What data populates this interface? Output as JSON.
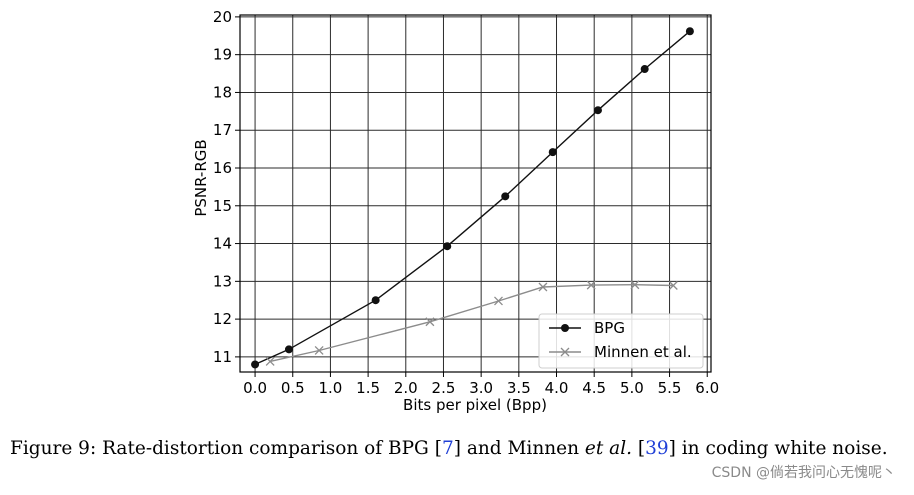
{
  "chart_data": {
    "type": "line",
    "xlabel": "Bits per pixel (Bpp)",
    "ylabel": "PSNR-RGB",
    "xlim": [
      -0.2,
      6.05
    ],
    "ylim": [
      10.6,
      20.05
    ],
    "xticks": [
      0.0,
      0.5,
      1.0,
      1.5,
      2.0,
      2.5,
      3.0,
      3.5,
      4.0,
      4.5,
      5.0,
      5.5,
      6.0
    ],
    "xtick_labels": [
      "0.0",
      "0.5",
      "1.0",
      "1.5",
      "2.0",
      "2.5",
      "3.0",
      "3.5",
      "4.0",
      "4.5",
      "5.0",
      "5.5",
      "6.0"
    ],
    "yticks": [
      11,
      12,
      13,
      14,
      15,
      16,
      17,
      18,
      19,
      20
    ],
    "ytick_labels": [
      "11",
      "12",
      "13",
      "14",
      "15",
      "16",
      "17",
      "18",
      "19",
      "20"
    ],
    "grid": true,
    "legend_position": "lower-right",
    "series": [
      {
        "name": "BPG",
        "color": "#111111",
        "marker": "circle",
        "x": [
          0.0,
          0.45,
          1.6,
          2.55,
          3.32,
          3.95,
          4.55,
          5.17,
          5.77
        ],
        "y": [
          10.8,
          11.2,
          12.5,
          13.93,
          15.25,
          16.42,
          17.53,
          18.62,
          19.62
        ]
      },
      {
        "name": "Minnen et al.",
        "color": "#8c8c8c",
        "marker": "x",
        "x": [
          0.2,
          0.85,
          2.32,
          3.23,
          3.82,
          4.46,
          5.04,
          5.55
        ],
        "y": [
          10.88,
          11.17,
          11.93,
          12.48,
          12.85,
          12.9,
          12.91,
          12.89
        ]
      }
    ]
  },
  "caption": {
    "prefix": "Figure 9: Rate-distortion comparison of BPG [",
    "ref1": "7",
    "middle": "] and Minnen ",
    "etal": "et al.",
    "space": " [",
    "ref2": "39",
    "suffix": "] in coding white noise."
  },
  "watermark": "CSDN @倘若我问心无愧呢丶"
}
